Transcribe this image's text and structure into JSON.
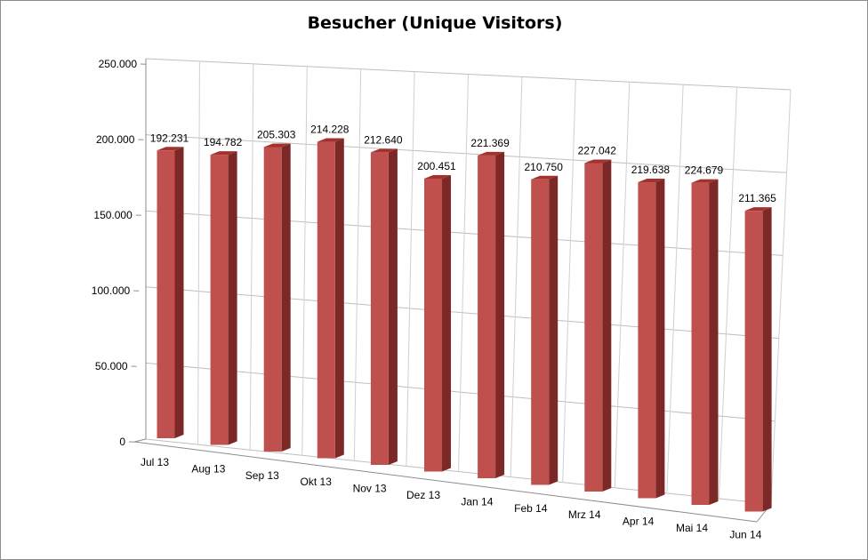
{
  "chart_data": {
    "type": "bar",
    "title": "Besucher (Unique Visitors)",
    "xlabel": "",
    "ylabel": "",
    "ylim": [
      0,
      250000
    ],
    "yticks": [
      {
        "value": 0,
        "label": "0"
      },
      {
        "value": 50000,
        "label": "50.000"
      },
      {
        "value": 100000,
        "label": "100.000"
      },
      {
        "value": 150000,
        "label": "150.000"
      },
      {
        "value": 200000,
        "label": "200.000"
      },
      {
        "value": 250000,
        "label": "250.000"
      }
    ],
    "grid": true,
    "legend": "none",
    "bar_color": "#c0504d",
    "categories": [
      "Jul 13",
      "Aug 13",
      "Sep 13",
      "Okt 13",
      "Nov 13",
      "Dez 13",
      "Jan 14",
      "Feb 14",
      "Mrz 14",
      "Apr 14",
      "Mai 14",
      "Jun 14"
    ],
    "values": [
      192231,
      194782,
      205303,
      214228,
      212640,
      200451,
      221369,
      210750,
      227042,
      219638,
      224679,
      211365
    ],
    "value_labels": [
      "192.231",
      "194.782",
      "205.303",
      "214.228",
      "212.640",
      "200.451",
      "221.369",
      "210.750",
      "227.042",
      "219.638",
      "224.679",
      "211.365"
    ]
  }
}
